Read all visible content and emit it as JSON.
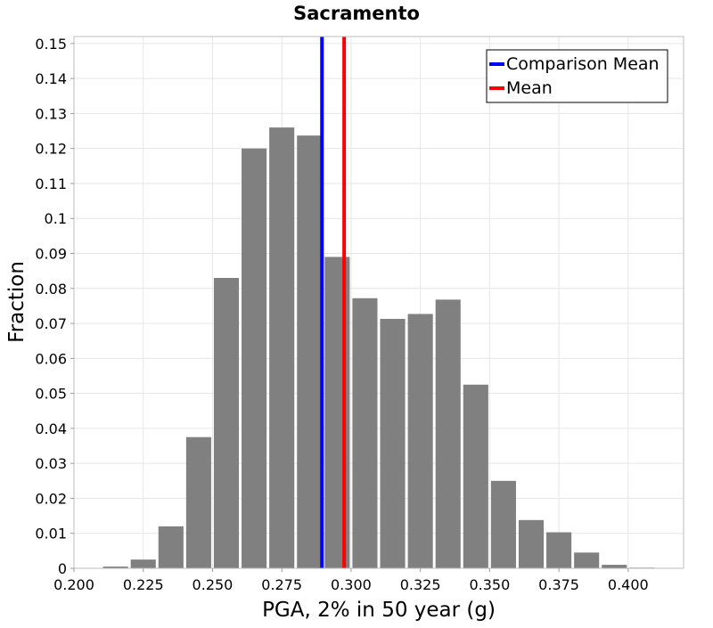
{
  "chart_data": {
    "type": "bar",
    "title": "Sacramento",
    "xlabel": "PGA, 2% in 50 year (g)",
    "ylabel": "Fraction",
    "xlim": [
      0.2,
      0.42
    ],
    "ylim": [
      0,
      0.152
    ],
    "bin_width": 0.01,
    "grid": true,
    "legend_position": "top-right",
    "x_ticks": [
      0.2,
      0.225,
      0.25,
      0.275,
      0.3,
      0.325,
      0.35,
      0.375,
      0.4
    ],
    "x_tick_labels": [
      "0.200",
      "0.225",
      "0.250",
      "0.275",
      "0.300",
      "0.325",
      "0.350",
      "0.375",
      "0.400"
    ],
    "y_ticks": [
      0,
      0.01,
      0.02,
      0.03,
      0.04,
      0.05,
      0.06,
      0.07,
      0.08,
      0.09,
      0.1,
      0.11,
      0.12,
      0.13,
      0.14,
      0.15
    ],
    "y_tick_labels": [
      "0",
      "0.01",
      "0.02",
      "0.03",
      "0.04",
      "0.05",
      "0.06",
      "0.07",
      "0.08",
      "0.09",
      "0.1",
      "0.11",
      "0.12",
      "0.13",
      "0.14",
      "0.15"
    ],
    "bins": [
      0.215,
      0.225,
      0.235,
      0.245,
      0.255,
      0.265,
      0.275,
      0.285,
      0.295,
      0.305,
      0.315,
      0.325,
      0.335,
      0.345,
      0.355,
      0.365,
      0.375,
      0.385,
      0.395,
      0.405
    ],
    "values": [
      0.0005,
      0.0025,
      0.012,
      0.0375,
      0.083,
      0.12,
      0.126,
      0.1237,
      0.089,
      0.0772,
      0.0713,
      0.0727,
      0.0768,
      0.0525,
      0.025,
      0.0138,
      0.0103,
      0.0045,
      0.001,
      0.0002
    ],
    "bar_color": "#808080",
    "series": [
      {
        "name": "Comparison Mean",
        "value": 0.2895,
        "color": "#0000ff"
      },
      {
        "name": "Mean",
        "value": 0.2975,
        "color": "#ff0000"
      }
    ]
  }
}
